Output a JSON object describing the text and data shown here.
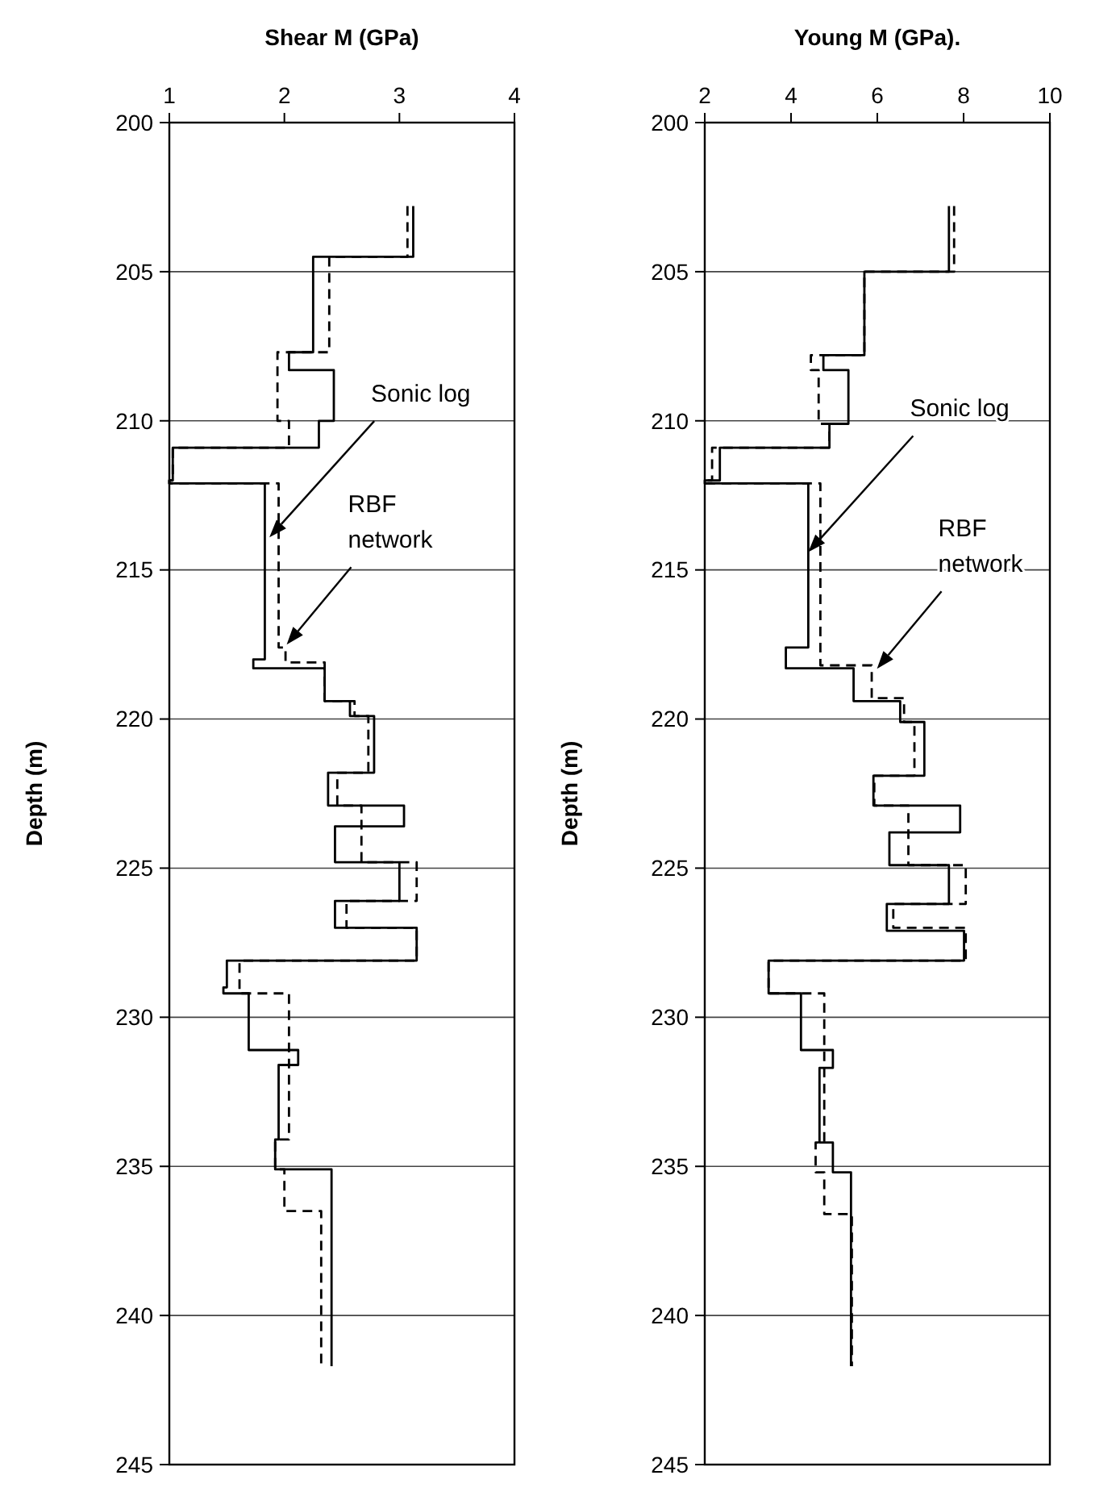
{
  "chart_data": [
    {
      "type": "line",
      "xlabel": "Shear M (GPa)",
      "ylabel": "Depth (m)",
      "xlim": [
        1,
        4
      ],
      "xticks": [
        1,
        2,
        3,
        4
      ],
      "ylim": [
        245,
        200
      ],
      "yticks": [
        200,
        205,
        210,
        215,
        220,
        225,
        230,
        235,
        240,
        245
      ],
      "grid": "y",
      "series": [
        {
          "color": "#000000",
          "line_style": "solid",
          "x": [
            3.12,
            3.12,
            2.25,
            2.25,
            2.04,
            2.04,
            2.43,
            2.43,
            2.3,
            2.3,
            1.03,
            1.03,
            1,
            1,
            1.83,
            1.83,
            1.73,
            1.73,
            2.35,
            2.35,
            2.57,
            2.57,
            2.78,
            2.78,
            2.38,
            2.38,
            3.04,
            3.04,
            2.44,
            2.44,
            3.0,
            3.0,
            2.44,
            2.44,
            3.15,
            3.15,
            1.5,
            1.5,
            1.47,
            1.47,
            1.69,
            1.69,
            2.12,
            2.12,
            1.95,
            1.95,
            1.92,
            1.92,
            2.41,
            2.41
          ],
          "values": [
            202.8,
            204.5,
            204.5,
            207.7,
            207.7,
            208.3,
            208.3,
            210.0,
            210.0,
            210.9,
            210.9,
            212.0,
            212.0,
            212.1,
            212.1,
            218.0,
            218.0,
            218.3,
            218.3,
            219.4,
            219.4,
            219.9,
            219.9,
            221.8,
            221.8,
            222.9,
            222.9,
            223.6,
            223.6,
            224.8,
            224.8,
            226.1,
            226.1,
            227.0,
            227.0,
            228.1,
            228.1,
            229.0,
            229.0,
            229.2,
            229.2,
            231.1,
            231.1,
            231.6,
            231.6,
            234.1,
            234.1,
            235.1,
            235.1,
            241.7
          ]
        },
        {
          "color": "#000000",
          "line_style": "dashed",
          "x": [
            3.07,
            3.07,
            2.39,
            2.39,
            1.94,
            1.94,
            2.04,
            2.04,
            1.03,
            1.03,
            1,
            1,
            1.95,
            1.95,
            2.01,
            2.01,
            2.35,
            2.35,
            2.61,
            2.61,
            2.73,
            2.73,
            2.46,
            2.46,
            2.67,
            2.67,
            3.15,
            3.15,
            2.54,
            2.54,
            3.15,
            3.15,
            1.61,
            1.61,
            2.04,
            2.04,
            1.92,
            1.92,
            2.0,
            2.0,
            2.32,
            2.32
          ],
          "values": [
            202.8,
            204.5,
            204.5,
            207.7,
            207.7,
            210.0,
            210.0,
            210.9,
            210.9,
            212.0,
            212.0,
            212.1,
            212.1,
            217.6,
            217.6,
            218.1,
            218.1,
            219.4,
            219.4,
            219.9,
            219.9,
            221.8,
            221.8,
            222.9,
            222.9,
            224.8,
            224.8,
            226.1,
            226.1,
            227.0,
            227.0,
            228.1,
            228.1,
            229.2,
            229.2,
            234.1,
            234.1,
            235.1,
            235.1,
            236.5,
            236.5,
            241.7
          ]
        }
      ],
      "annotations": [
        "Sonic log",
        "RBF network"
      ]
    },
    {
      "type": "line",
      "xlabel": "Young M (GPa).",
      "ylabel": "Depth (m)",
      "xlim": [
        2,
        10
      ],
      "xticks": [
        2,
        4,
        6,
        8,
        10
      ],
      "ylim": [
        245,
        200
      ],
      "yticks": [
        200,
        205,
        210,
        215,
        220,
        225,
        230,
        235,
        240,
        245
      ],
      "grid": "y",
      "series": [
        {
          "color": "#000000",
          "line_style": "solid",
          "x": [
            7.66,
            7.66,
            5.7,
            5.7,
            4.75,
            4.75,
            5.33,
            5.33,
            4.89,
            4.89,
            2.35,
            2.35,
            2,
            2,
            4.4,
            4.4,
            3.88,
            3.88,
            5.45,
            5.45,
            6.53,
            6.53,
            7.09,
            7.09,
            5.91,
            5.91,
            7.92,
            7.92,
            6.28,
            6.28,
            7.66,
            7.66,
            6.22,
            6.22,
            8.01,
            8.01,
            3.48,
            3.48,
            4.23,
            4.23,
            4.97,
            4.97,
            4.66,
            4.66,
            4.97,
            4.97,
            5.39,
            5.39
          ],
          "values": [
            202.8,
            205.0,
            205.0,
            207.8,
            207.8,
            208.3,
            208.3,
            210.1,
            210.1,
            210.9,
            210.9,
            212.0,
            212.0,
            212.1,
            212.1,
            217.6,
            217.6,
            218.3,
            218.3,
            219.4,
            219.4,
            220.1,
            220.1,
            221.9,
            221.9,
            222.9,
            222.9,
            223.8,
            223.8,
            224.9,
            224.9,
            226.2,
            226.2,
            227.1,
            227.1,
            228.1,
            228.1,
            229.2,
            229.2,
            231.1,
            231.1,
            231.7,
            231.7,
            234.2,
            234.2,
            235.2,
            235.2,
            241.7
          ]
        },
        {
          "color": "#000000",
          "line_style": "dashed",
          "x": [
            7.78,
            7.78,
            5.7,
            5.7,
            4.46,
            4.46,
            4.64,
            4.64,
            4.89,
            4.89,
            2.17,
            2.17,
            2,
            2,
            4.68,
            4.68,
            5.87,
            5.87,
            6.62,
            6.62,
            6.86,
            6.86,
            5.93,
            5.93,
            6.72,
            6.72,
            8.05,
            8.05,
            6.37,
            6.37,
            8.05,
            8.05,
            3.48,
            3.48,
            4.77,
            4.77,
            4.57,
            4.57,
            4.77,
            4.77,
            5.41,
            5.41
          ],
          "values": [
            202.8,
            205.0,
            205.0,
            207.8,
            207.8,
            208.3,
            208.3,
            210.1,
            210.1,
            210.9,
            210.9,
            212.0,
            212.0,
            212.1,
            212.1,
            218.2,
            218.2,
            219.3,
            219.3,
            220.1,
            220.1,
            221.9,
            221.9,
            222.9,
            222.9,
            224.9,
            224.9,
            226.2,
            226.2,
            227.0,
            227.0,
            228.1,
            228.1,
            229.2,
            229.2,
            234.2,
            234.2,
            235.2,
            235.2,
            236.6,
            236.6,
            241.7
          ]
        }
      ],
      "annotations": [
        "Sonic log",
        "RBF network"
      ]
    }
  ]
}
